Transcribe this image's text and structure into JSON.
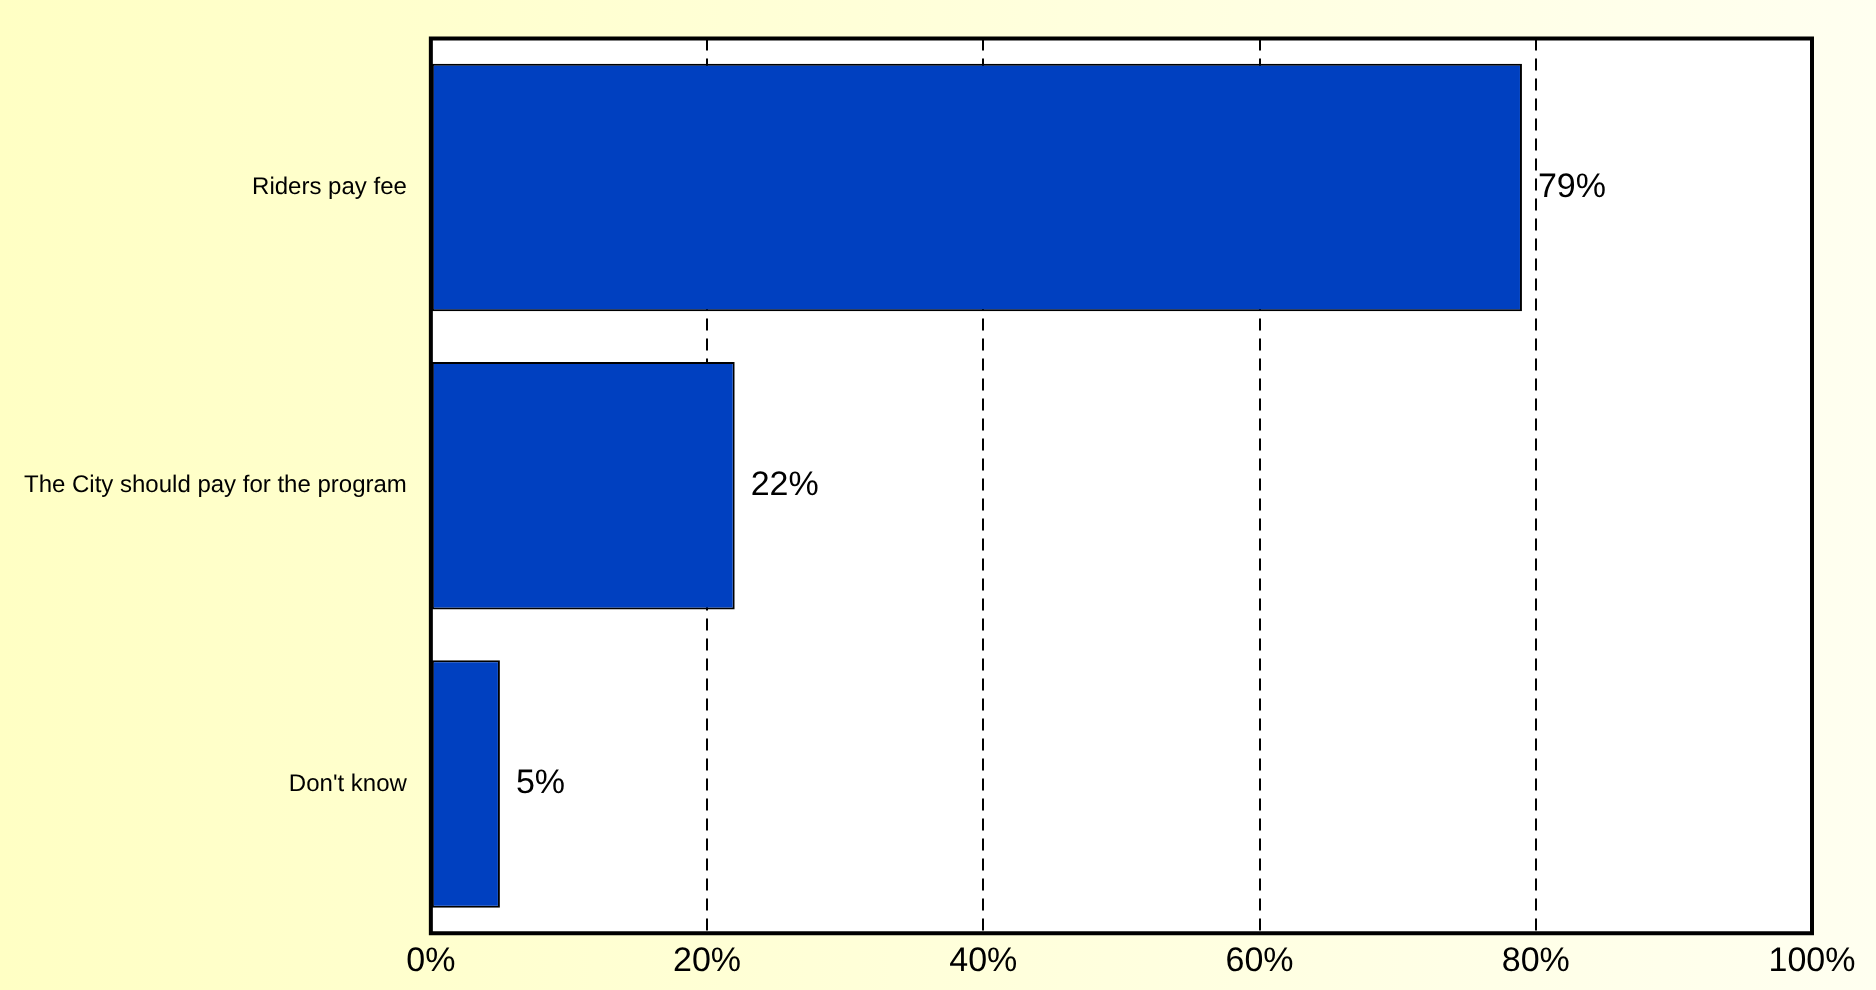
{
  "chart_data": {
    "type": "bar",
    "orientation": "horizontal",
    "categories": [
      "Riders pay fee",
      "The City should pay for the program",
      "Don't know"
    ],
    "values": [
      79,
      22,
      5
    ],
    "value_labels": [
      "79%",
      "22%",
      "5%"
    ],
    "color": "#0040c0",
    "xlim": [
      0,
      100
    ],
    "xticks": [
      {
        "value": 0,
        "label": "0%"
      },
      {
        "value": 20,
        "label": "20%"
      },
      {
        "value": 40,
        "label": "40%"
      },
      {
        "value": 60,
        "label": "60%"
      },
      {
        "value": 80,
        "label": "80%"
      },
      {
        "value": 100,
        "label": "100%"
      }
    ],
    "grid": "x"
  }
}
